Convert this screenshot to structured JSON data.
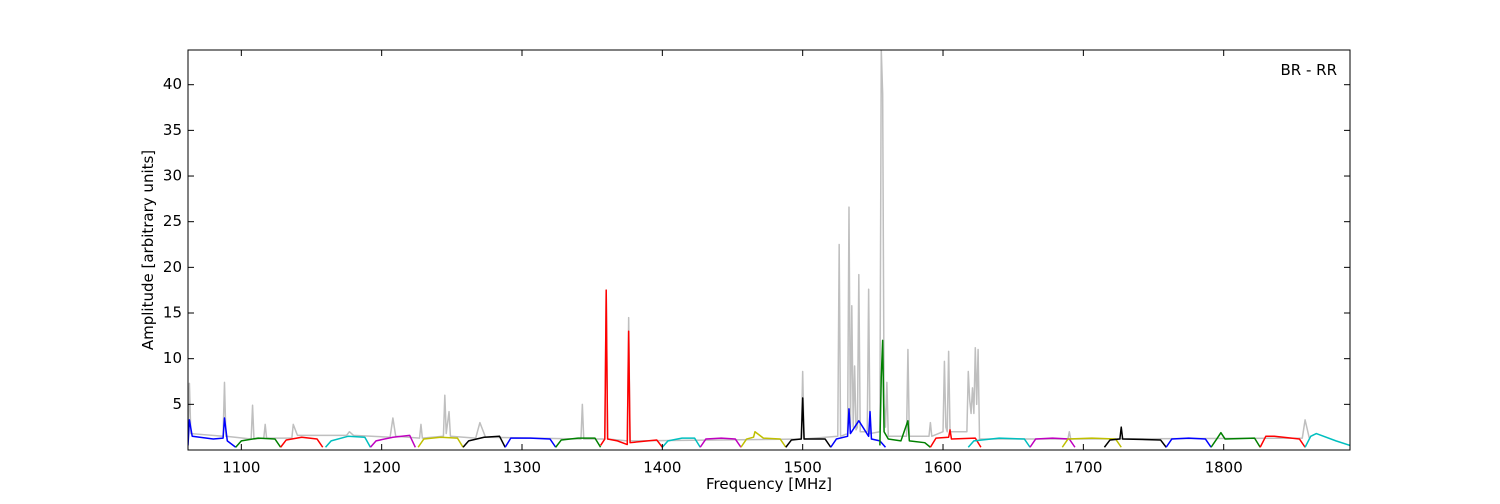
{
  "chart_data": {
    "type": "line",
    "xlabel": "Frequency [MHz]",
    "ylabel": "Amplitude [arbitrary units]",
    "annotation": "BR - RR",
    "xlim": [
      1062,
      1890
    ],
    "ylim": [
      0,
      43.8
    ],
    "xticks": [
      1100,
      1200,
      1300,
      1400,
      1500,
      1600,
      1700,
      1800
    ],
    "yticks": [
      5,
      10,
      15,
      20,
      25,
      30,
      35,
      40
    ],
    "series": [
      {
        "color": "#bfbfbf",
        "x": [
          1062,
          1063,
          1064,
          1087,
          1088,
          1089,
          1107,
          1108,
          1109,
          1116,
          1117,
          1118,
          1136,
          1137,
          1140,
          1175,
          1177,
          1180,
          1206,
          1208,
          1210,
          1227,
          1228,
          1229,
          1244,
          1245,
          1246,
          1248,
          1249,
          1267,
          1270,
          1274,
          1342,
          1343,
          1344,
          1359,
          1360,
          1361,
          1375,
          1376,
          1377,
          1499,
          1500,
          1501,
          1525,
          1526,
          1527,
          1532,
          1533,
          1534,
          1535,
          1536,
          1537,
          1538,
          1539,
          1540,
          1541,
          1546,
          1547,
          1548,
          1555,
          1556,
          1557,
          1558,
          1559,
          1560,
          1561,
          1574,
          1575,
          1576,
          1590,
          1591,
          1592,
          1600,
          1601,
          1602,
          1603,
          1604,
          1605,
          1617,
          1618,
          1619,
          1620,
          1621,
          1622,
          1623,
          1624,
          1625,
          1626,
          1689,
          1690,
          1691,
          1856,
          1858,
          1861
        ],
        "values": [
          1.5,
          7.3,
          1.8,
          1.5,
          7.4,
          1.5,
          1.2,
          4.9,
          1.2,
          1.3,
          2.8,
          1.3,
          1.3,
          2.8,
          1.6,
          1.6,
          2.0,
          1.6,
          1.4,
          3.5,
          1.5,
          1.3,
          2.8,
          1.3,
          1.5,
          6.0,
          1.8,
          4.2,
          1.5,
          1.3,
          3.0,
          1.4,
          1.2,
          5.0,
          1.2,
          1.2,
          17.5,
          1.2,
          1.0,
          14.5,
          1.0,
          1.2,
          8.6,
          1.2,
          1.5,
          22.5,
          1.5,
          1.8,
          26.6,
          2.5,
          15.8,
          2.5,
          9.2,
          2.2,
          2.5,
          19.2,
          2.0,
          2.0,
          17.6,
          1.8,
          2.0,
          43.8,
          39.0,
          5.0,
          2.5,
          7.4,
          1.5,
          1.5,
          11.0,
          1.5,
          1.5,
          3.0,
          1.5,
          2.0,
          9.7,
          2.5,
          2.0,
          10.8,
          2.0,
          2.0,
          8.6,
          5.5,
          4.0,
          6.8,
          4.0,
          11.2,
          5.0,
          11.0,
          1.2,
          1.2,
          2.0,
          1.2,
          1.3,
          3.3,
          1.3
        ]
      },
      {
        "color": "#0000ff",
        "x": [
          1062,
          1063,
          1065,
          1080,
          1087,
          1088,
          1090,
          1096
        ],
        "values": [
          0.5,
          3.3,
          1.5,
          1.2,
          1.3,
          3.5,
          1.0,
          0.3
        ]
      },
      {
        "color": "#008000",
        "x": [
          1096,
          1100,
          1112,
          1124,
          1128
        ],
        "values": [
          0.3,
          1.0,
          1.3,
          1.2,
          0.3
        ]
      },
      {
        "color": "#ff0000",
        "x": [
          1128,
          1132,
          1143,
          1154,
          1158
        ],
        "values": [
          0.3,
          1.1,
          1.4,
          1.2,
          0.3
        ]
      },
      {
        "color": "#00bfbf",
        "x": [
          1160,
          1164,
          1176,
          1188,
          1192
        ],
        "values": [
          0.3,
          1.0,
          1.5,
          1.4,
          0.3
        ]
      },
      {
        "color": "#bf00bf",
        "x": [
          1192,
          1196,
          1208,
          1220,
          1224
        ],
        "values": [
          0.3,
          1.0,
          1.4,
          1.6,
          0.3
        ]
      },
      {
        "color": "#bfbf00",
        "x": [
          1226,
          1230,
          1242,
          1254,
          1258
        ],
        "values": [
          0.3,
          1.2,
          1.4,
          1.3,
          0.3
        ]
      },
      {
        "color": "#000000",
        "x": [
          1258,
          1262,
          1273,
          1284,
          1288
        ],
        "values": [
          0.3,
          1.0,
          1.4,
          1.5,
          0.3
        ]
      },
      {
        "color": "#0000ff",
        "x": [
          1288,
          1292,
          1306,
          1320,
          1324
        ],
        "values": [
          0.3,
          1.3,
          1.3,
          1.2,
          0.3
        ]
      },
      {
        "color": "#008000",
        "x": [
          1324,
          1328,
          1340,
          1352,
          1356
        ],
        "values": [
          0.3,
          1.1,
          1.3,
          1.3,
          0.3
        ]
      },
      {
        "color": "#ff0000",
        "x": [
          1356,
          1359,
          1360,
          1361,
          1368,
          1375,
          1376,
          1377,
          1396,
          1400
        ],
        "values": [
          0.5,
          1.2,
          17.5,
          1.2,
          1.0,
          0.6,
          13.0,
          0.8,
          1.1,
          0.3
        ]
      },
      {
        "color": "#00bfbf",
        "x": [
          1400,
          1404,
          1414,
          1423,
          1427
        ],
        "values": [
          0.3,
          1.0,
          1.3,
          1.3,
          0.3
        ]
      },
      {
        "color": "#bf00bf",
        "x": [
          1427,
          1431,
          1442,
          1452,
          1456
        ],
        "values": [
          0.3,
          1.2,
          1.3,
          1.2,
          0.3
        ]
      },
      {
        "color": "#bfbf00",
        "x": [
          1456,
          1460,
          1465,
          1466,
          1472,
          1484,
          1488
        ],
        "values": [
          0.3,
          1.2,
          1.4,
          2.0,
          1.3,
          1.2,
          0.3
        ]
      },
      {
        "color": "#000000",
        "x": [
          1488,
          1492,
          1499,
          1500,
          1501,
          1516,
          1520
        ],
        "values": [
          0.3,
          1.1,
          1.2,
          5.7,
          1.2,
          1.2,
          0.3
        ]
      },
      {
        "color": "#0000ff",
        "x": [
          1520,
          1524,
          1532,
          1533,
          1534,
          1540,
          1547,
          1548,
          1549,
          1555,
          1559
        ],
        "values": [
          0.3,
          1.2,
          1.5,
          4.5,
          1.8,
          3.2,
          1.5,
          4.2,
          1.2,
          1.0,
          0.3
        ]
      },
      {
        "color": "#008000",
        "x": [
          1555,
          1556,
          1557,
          1558,
          1561,
          1570,
          1575,
          1576,
          1587,
          1591
        ],
        "values": [
          0.5,
          8.0,
          12.0,
          2.0,
          1.2,
          1.0,
          3.2,
          1.0,
          0.8,
          0.3
        ]
      },
      {
        "color": "#ff0000",
        "x": [
          1591,
          1595,
          1604,
          1605,
          1606,
          1623,
          1627
        ],
        "values": [
          0.3,
          1.3,
          1.4,
          2.2,
          1.2,
          1.3,
          0.3
        ]
      },
      {
        "color": "#00bfbf",
        "x": [
          1618,
          1622,
          1640,
          1658,
          1662
        ],
        "values": [
          0.3,
          1.0,
          1.3,
          1.2,
          0.3
        ]
      },
      {
        "color": "#bf00bf",
        "x": [
          1662,
          1666,
          1678,
          1690,
          1694
        ],
        "values": [
          0.3,
          1.2,
          1.3,
          1.2,
          0.3
        ]
      },
      {
        "color": "#bfbf00",
        "x": [
          1685,
          1689,
          1706,
          1723,
          1727
        ],
        "values": [
          0.3,
          1.2,
          1.3,
          1.2,
          0.3
        ]
      },
      {
        "color": "#000000",
        "x": [
          1715,
          1719,
          1726,
          1727,
          1728,
          1755,
          1759
        ],
        "values": [
          0.3,
          1.1,
          1.2,
          2.5,
          1.2,
          1.1,
          0.3
        ]
      },
      {
        "color": "#0000ff",
        "x": [
          1759,
          1763,
          1775,
          1787,
          1791
        ],
        "values": [
          0.3,
          1.2,
          1.3,
          1.2,
          0.3
        ]
      },
      {
        "color": "#008000",
        "x": [
          1791,
          1795,
          1798,
          1801,
          1822,
          1826
        ],
        "values": [
          0.3,
          1.2,
          1.9,
          1.2,
          1.3,
          0.3
        ]
      },
      {
        "color": "#ff0000",
        "x": [
          1826,
          1830,
          1836,
          1854,
          1858
        ],
        "values": [
          0.3,
          1.5,
          1.5,
          1.2,
          0.3
        ]
      },
      {
        "color": "#00bfbf",
        "x": [
          1858,
          1862,
          1866,
          1880,
          1890
        ],
        "values": [
          0.3,
          1.5,
          1.8,
          1.0,
          0.5
        ]
      }
    ]
  }
}
